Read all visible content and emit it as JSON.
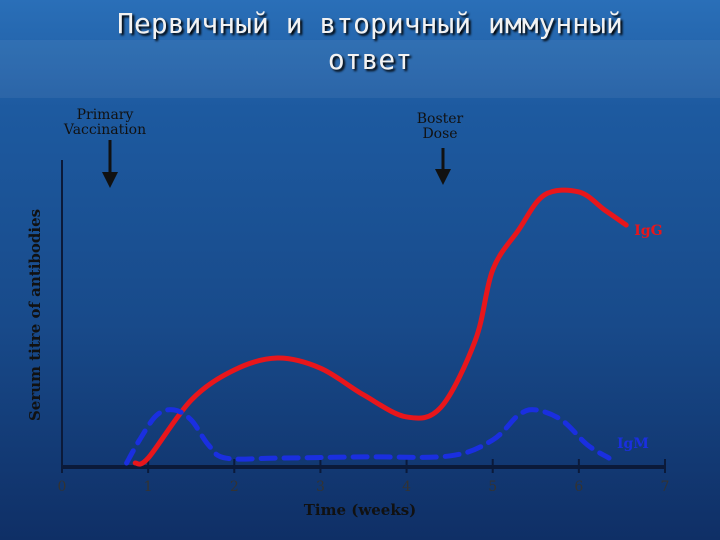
{
  "chart_data": {
    "type": "line",
    "title": "Первичный и вторичный иммунный ответ",
    "annotations": [
      "Primary Vaccination",
      "Boster Dose"
    ],
    "xlabel": "Time (weeks)",
    "ylabel": "Serum titre of antibodies",
    "xlim": [
      0,
      7
    ],
    "xticks": [
      0,
      1,
      2,
      3,
      4,
      5,
      6,
      7
    ],
    "ylim": [
      0,
      100
    ],
    "series": [
      {
        "name": "IgG",
        "color": "#e8161b",
        "dash": false,
        "x": [
          0.85,
          1,
          1.5,
          2,
          2.5,
          3,
          3.5,
          4,
          4.4,
          4.8,
          5,
          5.3,
          5.6,
          6,
          6.3,
          6.55
        ],
        "values": [
          1.3,
          2.9,
          21.8,
          31.6,
          35.5,
          32.2,
          23.5,
          16.3,
          19.5,
          41.4,
          64.2,
          77.2,
          88.6,
          89.6,
          83.7,
          78.8
        ]
      },
      {
        "name": "IgM",
        "color": "#1a2fe0",
        "dash": true,
        "x": [
          0.75,
          0.9,
          1.1,
          1.3,
          1.5,
          1.7,
          1.9,
          2.5,
          3.5,
          4.5,
          5,
          5.3,
          5.5,
          5.8,
          6.1,
          6.35
        ],
        "values": [
          1.3,
          8.8,
          16.9,
          18.6,
          15.3,
          7.2,
          2.9,
          2.9,
          3.3,
          3.6,
          8.8,
          16.9,
          18.6,
          15.3,
          7.2,
          2.9
        ]
      }
    ]
  }
}
